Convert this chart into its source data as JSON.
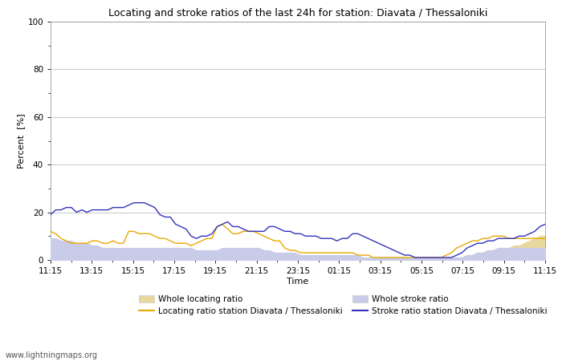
{
  "title": "Locating and stroke ratios of the last 24h for station: Diavata / Thessaloniki",
  "xlabel": "Time",
  "ylabel": "Percent  [%]",
  "ylim": [
    0,
    100
  ],
  "yticks": [
    0,
    20,
    40,
    60,
    80,
    100
  ],
  "x_labels": [
    "11:15",
    "13:15",
    "15:15",
    "17:15",
    "19:15",
    "21:15",
    "23:15",
    "01:15",
    "03:15",
    "05:15",
    "07:15",
    "09:15",
    "11:15"
  ],
  "background_color": "#ffffff",
  "plot_bg_color": "#ffffff",
  "watermark": "www.lightningmaps.org",
  "whole_locating_color": "#e8d8a0",
  "whole_stroke_color": "#c8cce8",
  "locating_line_color": "#e8a800",
  "stroke_line_color": "#3333bb",
  "whole_locating_ratio": [
    4,
    8,
    7,
    6,
    6,
    5,
    5,
    5,
    4,
    4,
    3,
    3,
    2,
    2,
    2,
    3,
    3,
    3,
    3,
    3,
    3,
    3,
    3,
    3,
    2,
    2,
    2,
    2,
    2,
    2,
    2,
    2,
    2,
    2,
    2,
    1,
    1,
    1,
    1,
    1,
    1,
    1,
    1,
    1,
    1,
    1,
    1,
    1,
    0,
    0,
    0,
    0,
    0,
    0,
    0,
    0,
    0,
    0,
    0,
    0,
    0,
    0,
    0,
    0,
    0,
    0,
    0,
    0,
    0,
    0,
    0,
    0,
    0,
    0,
    0,
    0,
    0,
    0,
    1,
    1,
    2,
    2,
    3,
    3,
    4,
    4,
    5,
    5,
    5,
    6,
    6,
    7,
    8,
    9,
    10,
    10
  ],
  "whole_stroke_ratio": [
    9,
    9,
    8,
    8,
    8,
    7,
    7,
    7,
    6,
    6,
    5,
    5,
    5,
    5,
    5,
    5,
    5,
    5,
    5,
    5,
    5,
    5,
    5,
    5,
    5,
    5,
    5,
    5,
    4,
    4,
    4,
    4,
    4,
    5,
    5,
    5,
    5,
    5,
    5,
    5,
    5,
    4,
    4,
    3,
    3,
    3,
    3,
    3,
    2,
    2,
    2,
    2,
    2,
    2,
    2,
    2,
    2,
    2,
    2,
    2,
    1,
    1,
    1,
    1,
    1,
    1,
    1,
    1,
    1,
    1,
    1,
    1,
    1,
    1,
    1,
    1,
    1,
    1,
    1,
    1,
    2,
    2,
    3,
    3,
    4,
    4,
    5,
    5,
    5,
    5,
    5,
    5,
    5,
    5,
    5,
    5
  ],
  "locating_ratio": [
    12,
    11,
    9,
    8,
    7,
    7,
    7,
    7,
    8,
    8,
    7,
    7,
    8,
    7,
    7,
    12,
    12,
    11,
    11,
    11,
    10,
    9,
    9,
    8,
    7,
    7,
    7,
    6,
    7,
    8,
    9,
    9,
    14,
    15,
    13,
    11,
    11,
    12,
    12,
    12,
    11,
    10,
    9,
    8,
    8,
    5,
    4,
    4,
    3,
    3,
    3,
    3,
    3,
    3,
    3,
    3,
    3,
    3,
    3,
    2,
    2,
    2,
    1,
    1,
    1,
    1,
    1,
    1,
    1,
    1,
    1,
    1,
    1,
    1,
    1,
    1,
    2,
    3,
    5,
    6,
    7,
    8,
    8,
    9,
    9,
    10,
    10,
    10,
    9,
    9,
    9,
    9,
    9,
    9,
    9,
    9
  ],
  "stroke_ratio": [
    19,
    21,
    21,
    22,
    22,
    20,
    21,
    20,
    21,
    21,
    21,
    21,
    22,
    22,
    22,
    23,
    24,
    24,
    24,
    23,
    22,
    19,
    18,
    18,
    15,
    14,
    13,
    10,
    9,
    10,
    10,
    11,
    14,
    15,
    16,
    14,
    14,
    13,
    12,
    12,
    12,
    12,
    14,
    14,
    13,
    12,
    12,
    11,
    11,
    10,
    10,
    10,
    9,
    9,
    9,
    8,
    9,
    9,
    11,
    11,
    10,
    9,
    8,
    7,
    6,
    5,
    4,
    3,
    2,
    2,
    1,
    1,
    1,
    1,
    1,
    1,
    1,
    1,
    2,
    3,
    5,
    6,
    7,
    7,
    8,
    8,
    9,
    9,
    9,
    9,
    10,
    10,
    11,
    12,
    14,
    15
  ]
}
